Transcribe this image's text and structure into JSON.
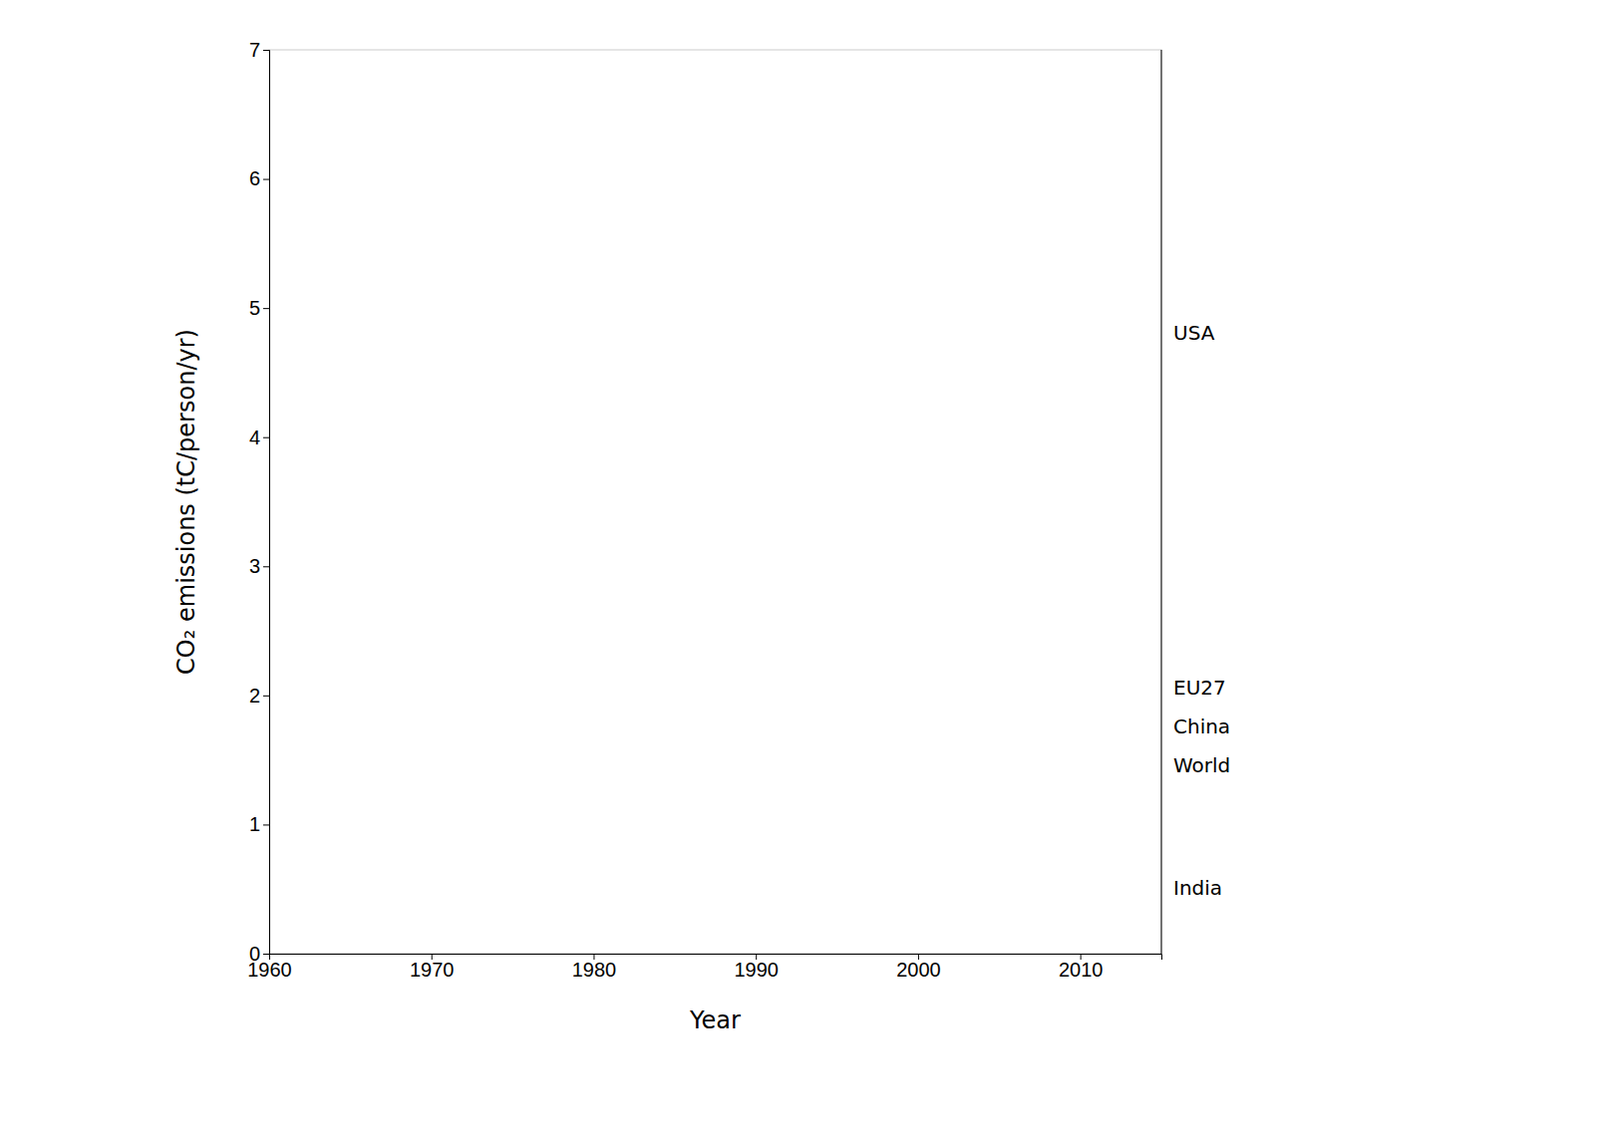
{
  "chart_data": {
    "type": "line",
    "xlabel": "Year",
    "ylabel": "CO₂ emissions (tC/person/yr)",
    "xlim": [
      1960,
      2015
    ],
    "ylim": [
      0,
      7
    ],
    "xticks": [
      1960,
      1970,
      1980,
      1990,
      2000,
      2010
    ],
    "yticks": [
      0,
      1,
      2,
      3,
      4,
      5,
      6,
      7
    ],
    "grid": false,
    "annotations": [
      {
        "text": "USA",
        "y": 4.8
      },
      {
        "text": "EU27",
        "y": 2.05
      },
      {
        "text": "China",
        "y": 1.75
      },
      {
        "text": "World",
        "y": 1.45
      },
      {
        "text": "India",
        "y": 0.5
      }
    ]
  }
}
